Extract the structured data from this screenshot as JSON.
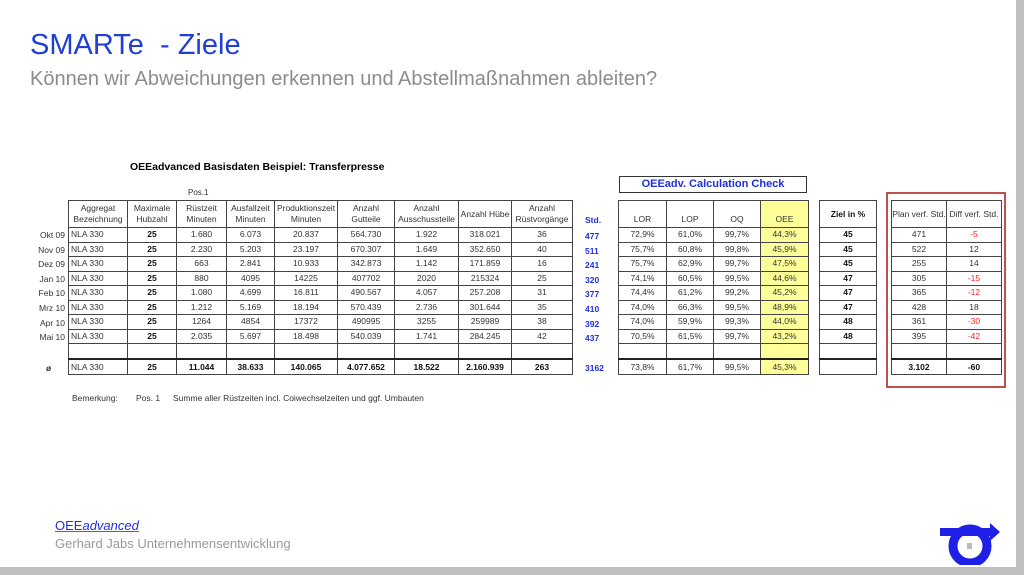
{
  "slide": {
    "title": "SMARTe  - Ziele",
    "subtitle": "Können wir Abweichungen erkennen und Abstellmaßnahmen ableiten?",
    "table_title": "OEEadvanced Basisdaten Beispiel: Transferpresse",
    "pos1_label": "Pos.1",
    "std_header": "Std.",
    "calc_title": "OEEadv. Calculation Check"
  },
  "main_table": {
    "headers": [
      "Aggregat Bezeichnung",
      "Maximale Hubzahl",
      "Rüstzeit Minuten",
      "Ausfallzeit Minuten",
      "Produktionszeit Minuten",
      "Anzahl Gutteile",
      "Anzahl Ausschussteile",
      "Anzahl Hübe",
      "Anzahl Rüstvorgänge"
    ],
    "rows": [
      {
        "month": "Okt 09",
        "cells": [
          "NLA 330",
          "25",
          "1.680",
          "6.073",
          "20.837",
          "564.730",
          "1.922",
          "318.021",
          "36"
        ],
        "std": "477"
      },
      {
        "month": "Nov 09",
        "cells": [
          "NLA 330",
          "25",
          "2.230",
          "5.203",
          "23.197",
          "670.307",
          "1.649",
          "352.650",
          "40"
        ],
        "std": "511"
      },
      {
        "month": "Dez 09",
        "cells": [
          "NLA 330",
          "25",
          "663",
          "2.841",
          "10.933",
          "342.873",
          "1.142",
          "171.859",
          "16"
        ],
        "std": "241"
      },
      {
        "month": "Jan 10",
        "cells": [
          "NLA 330",
          "25",
          "880",
          "4095",
          "14225",
          "407702",
          "2020",
          "215324",
          "25"
        ],
        "std": "320"
      },
      {
        "month": "Feb 10",
        "cells": [
          "NLA 330",
          "25",
          "1.080",
          "4.699",
          "16.811",
          "490.567",
          "4.057",
          "257.208",
          "31"
        ],
        "std": "377"
      },
      {
        "month": "Mrz 10",
        "cells": [
          "NLA 330",
          "25",
          "1.212",
          "5.169",
          "18.194",
          "570.439",
          "2.736",
          "301.644",
          "35"
        ],
        "std": "410"
      },
      {
        "month": "Apr 10",
        "cells": [
          "NLA 330",
          "25",
          "1264",
          "4854",
          "17372",
          "490995",
          "3255",
          "259989",
          "38"
        ],
        "std": "392"
      },
      {
        "month": "Mai 10",
        "cells": [
          "NLA 330",
          "25",
          "2.035",
          "5.697",
          "18.498",
          "540.039",
          "1.741",
          "284.245",
          "42"
        ],
        "std": "437"
      }
    ],
    "total": {
      "label": "ø",
      "cells": [
        "NLA 330",
        "25",
        "11.044",
        "38.633",
        "140.065",
        "4.077.652",
        "18.522",
        "2.160.939",
        "263"
      ],
      "std": "3162"
    }
  },
  "calc_table": {
    "headers": [
      "LOR",
      "LOP",
      "OQ",
      "OEE"
    ],
    "rows": [
      [
        "72,9%",
        "61,0%",
        "99,7%",
        "44,3%"
      ],
      [
        "75,7%",
        "60,8%",
        "99,8%",
        "45,9%"
      ],
      [
        "75,7%",
        "62,9%",
        "99,7%",
        "47,5%"
      ],
      [
        "74,1%",
        "60,5%",
        "99,5%",
        "44,6%"
      ],
      [
        "74,4%",
        "61,2%",
        "99,2%",
        "45,2%"
      ],
      [
        "74,0%",
        "66,3%",
        "99,5%",
        "48,9%"
      ],
      [
        "74,0%",
        "59,9%",
        "99,3%",
        "44,0%"
      ],
      [
        "70,5%",
        "61,5%",
        "99,7%",
        "43,2%"
      ]
    ],
    "total": [
      "73,8%",
      "61,7%",
      "99,5%",
      "45,3%"
    ],
    "highlight_color": "#ffff99"
  },
  "ziel_table": {
    "header": "Ziel in %",
    "values": [
      "45",
      "45",
      "45",
      "47",
      "47",
      "47",
      "48",
      "48"
    ]
  },
  "plan_table": {
    "headers": [
      "Plan verf. Std.",
      "Diff verf. Std."
    ],
    "rows": [
      [
        "471",
        "-5"
      ],
      [
        "522",
        "12"
      ],
      [
        "255",
        "14"
      ],
      [
        "305",
        "-15"
      ],
      [
        "365",
        "-12"
      ],
      [
        "428",
        "18"
      ],
      [
        "361",
        "-30"
      ],
      [
        "395",
        "-42"
      ]
    ],
    "total": [
      "3.102",
      "-60"
    ],
    "box_color": "#c0504d",
    "negative_color": "#ff2020"
  },
  "remark": {
    "label": "Bemerkung:",
    "pos": "Pos. 1",
    "text": "Summe aller Rüstzeiten incl. Coiwechselzeiten und ggf. Umbauten"
  },
  "footer": {
    "brand_prefix": "OEE",
    "brand_suffix": "advanced",
    "company": "Gerhard Jabs Unternehmensentwicklung"
  },
  "colors": {
    "title": "#1f3fd6",
    "accent_blue": "#1f2fe0"
  }
}
